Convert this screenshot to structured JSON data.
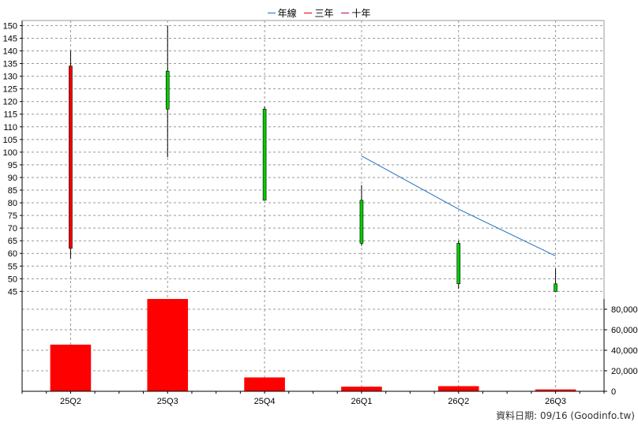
{
  "legend": [
    {
      "label": "年線",
      "color": "#1f6fc5"
    },
    {
      "label": "三年",
      "color": "#e00000"
    },
    {
      "label": "十年",
      "color": "#c0006a"
    }
  ],
  "footer": "資料日期: 09/16  (Goodinfo.tw)",
  "chart_data": {
    "type": "candlestick",
    "categories": [
      "25Q2",
      "25Q3",
      "25Q4",
      "26Q1",
      "26Q2",
      "26Q3"
    ],
    "price_axis": {
      "ylim": [
        42,
        152
      ],
      "ticks": [
        45,
        50,
        55,
        60,
        65,
        70,
        75,
        80,
        85,
        90,
        95,
        100,
        105,
        110,
        115,
        120,
        125,
        130,
        135,
        140,
        145,
        150
      ]
    },
    "candles": [
      {
        "open": 62,
        "high": 140,
        "low": 58,
        "close": 134,
        "color": "#ff0000"
      },
      {
        "open": 132,
        "high": 150,
        "low": 98,
        "close": 117,
        "color": "#00cc00"
      },
      {
        "open": 117,
        "high": 118,
        "low": 81,
        "close": 81,
        "color": "#00cc00"
      },
      {
        "open": 81,
        "high": 87,
        "low": 63,
        "close": 64,
        "color": "#00cc00"
      },
      {
        "open": 64,
        "high": 65,
        "low": 46,
        "close": 48,
        "color": "#00cc00"
      },
      {
        "open": 48,
        "high": 54,
        "low": 45,
        "close": 45,
        "color": "#00cc00"
      }
    ],
    "series": [
      {
        "name": "年線",
        "x": [
          "26Q1",
          "26Q2",
          "26Q3"
        ],
        "values": [
          98.5,
          77.5,
          59
        ],
        "color": "#1f6fc5"
      }
    ],
    "volume_axis": {
      "ylim": [
        0,
        90000
      ],
      "ticks": [
        0,
        20000,
        40000,
        60000,
        80000
      ],
      "tick_labels": [
        "0",
        "20,000",
        "40,000",
        "60,000",
        "80,000"
      ]
    },
    "volume": [
      45500,
      91500,
      13500,
      4500,
      5000,
      1800
    ],
    "volume_color": "#ff0000",
    "grid": true
  }
}
